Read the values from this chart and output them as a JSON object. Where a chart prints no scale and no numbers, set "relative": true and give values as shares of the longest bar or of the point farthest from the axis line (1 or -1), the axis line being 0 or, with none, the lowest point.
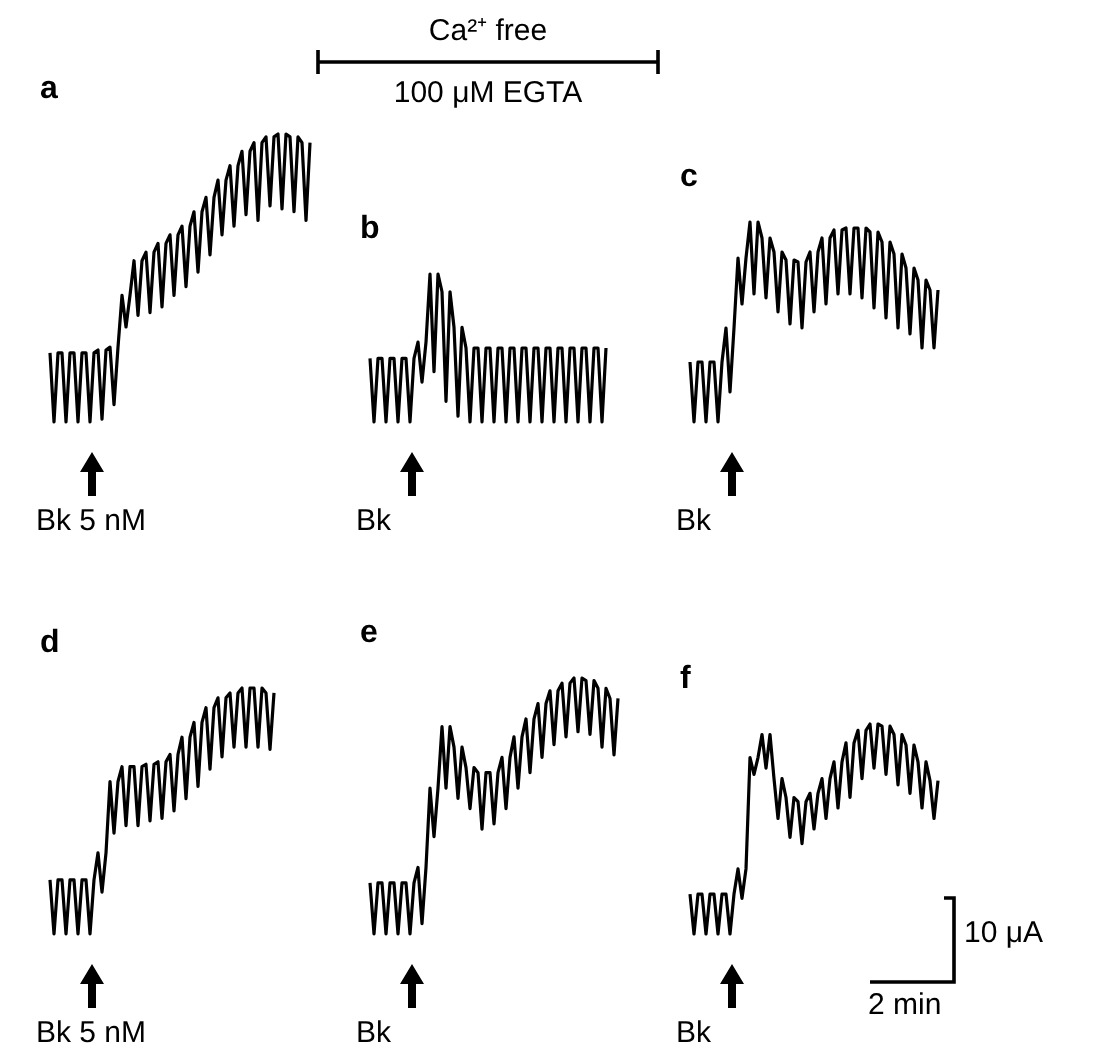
{
  "chart_data": [
    {
      "type": "line",
      "title": "a",
      "relative": true,
      "annotations": [
        "Bk 5 nM"
      ],
      "categories": [
        null,
        null,
        null,
        null,
        null,
        null,
        null,
        null,
        null,
        null,
        null,
        null,
        null,
        null,
        null,
        null,
        null,
        null,
        null,
        null,
        null,
        null,
        null,
        null,
        null,
        null,
        null,
        null,
        null,
        null,
        null,
        null,
        null,
        null,
        null,
        null,
        null,
        null,
        null,
        null,
        null,
        null,
        null,
        null,
        null,
        null,
        null,
        null,
        null,
        null,
        null,
        null,
        null,
        null,
        null,
        null,
        null,
        null,
        null,
        null,
        null,
        null,
        null,
        null,
        null,
        null
      ],
      "series": [
        {
          "color": "#000000",
          "values": [
            0.24,
            0,
            0.24,
            0.24,
            0,
            0.24,
            0.24,
            0,
            0.24,
            0.24,
            0,
            0.24,
            0.25,
            0.01,
            0.25,
            0.26,
            0.06,
            0.26,
            0.44,
            0.33,
            0.44,
            0.56,
            0.37,
            0.56,
            0.59,
            0.38,
            0.59,
            0.62,
            0.4,
            0.62,
            0.65,
            0.44,
            0.65,
            0.68,
            0.47,
            0.68,
            0.73,
            0.52,
            0.73,
            0.78,
            0.58,
            0.78,
            0.84,
            0.65,
            0.84,
            0.89,
            0.68,
            0.89,
            0.94,
            0.72,
            0.94,
            0.97,
            0.7,
            0.97,
            0.99,
            0.75,
            0.99,
            1,
            0.74,
            1,
            0.99,
            0.73,
            0.99,
            0.97,
            0.7,
            0.97
          ]
        }
      ]
    },
    {
      "type": "line",
      "title": "b",
      "relative": true,
      "annotations": [
        "Bk",
        "Ca²⁺ free",
        "100 μM EGTA"
      ],
      "categories": [
        null,
        null,
        null,
        null,
        null,
        null,
        null,
        null,
        null,
        null,
        null,
        null,
        null,
        null,
        null,
        null,
        null,
        null,
        null,
        null,
        null,
        null,
        null,
        null,
        null,
        null,
        null,
        null,
        null,
        null,
        null,
        null,
        null,
        null,
        null,
        null,
        null,
        null,
        null,
        null,
        null,
        null,
        null,
        null,
        null,
        null,
        null,
        null,
        null,
        null,
        null,
        null,
        null,
        null,
        null,
        null,
        null,
        null,
        null,
        null
      ],
      "series": [
        {
          "color": "#000000",
          "values": [
            0.43,
            0,
            0.43,
            0.43,
            0,
            0.43,
            0.43,
            0,
            0.43,
            0.43,
            0,
            0.43,
            0.54,
            0.27,
            0.54,
            1,
            0.34,
            1,
            0.88,
            0.14,
            0.88,
            0.64,
            0.04,
            0.64,
            0.5,
            0,
            0.5,
            0.5,
            0,
            0.5,
            0.5,
            0,
            0.5,
            0.5,
            0,
            0.5,
            0.5,
            0,
            0.5,
            0.5,
            0,
            0.5,
            0.5,
            0,
            0.5,
            0.5,
            0,
            0.5,
            0.5,
            0,
            0.5,
            0.5,
            0,
            0.5,
            0.5,
            0,
            0.5,
            0.5,
            0,
            0.5
          ]
        }
      ]
    },
    {
      "type": "line",
      "title": "c",
      "relative": true,
      "annotations": [
        "Bk"
      ],
      "categories": [
        null,
        null,
        null,
        null,
        null,
        null,
        null,
        null,
        null,
        null,
        null,
        null,
        null,
        null,
        null,
        null,
        null,
        null,
        null,
        null,
        null,
        null,
        null,
        null,
        null,
        null,
        null,
        null,
        null,
        null,
        null,
        null,
        null,
        null,
        null,
        null,
        null,
        null,
        null,
        null,
        null,
        null,
        null,
        null,
        null,
        null,
        null,
        null,
        null,
        null,
        null,
        null,
        null,
        null,
        null,
        null,
        null,
        null,
        null,
        null,
        null,
        null,
        null
      ],
      "series": [
        {
          "color": "#000000",
          "values": [
            0.3,
            0,
            0.3,
            0.3,
            0,
            0.3,
            0.3,
            0,
            0.3,
            0.47,
            0.15,
            0.47,
            0.82,
            0.59,
            0.82,
            1,
            0.64,
            1,
            0.92,
            0.62,
            0.92,
            0.85,
            0.55,
            0.85,
            0.81,
            0.49,
            0.81,
            0.8,
            0.47,
            0.8,
            0.85,
            0.55,
            0.85,
            0.92,
            0.59,
            0.92,
            0.96,
            0.64,
            0.96,
            0.97,
            0.64,
            0.97,
            0.97,
            0.62,
            0.97,
            0.95,
            0.57,
            0.95,
            0.9,
            0.52,
            0.9,
            0.84,
            0.47,
            0.84,
            0.77,
            0.44,
            0.77,
            0.71,
            0.37,
            0.71,
            0.66,
            0.37,
            0.66
          ]
        }
      ]
    },
    {
      "type": "line",
      "title": "d",
      "relative": true,
      "annotations": [
        "Bk 5 nM"
      ],
      "categories": [
        null,
        null,
        null,
        null,
        null,
        null,
        null,
        null,
        null,
        null,
        null,
        null,
        null,
        null,
        null,
        null,
        null,
        null,
        null,
        null,
        null,
        null,
        null,
        null,
        null,
        null,
        null,
        null,
        null,
        null,
        null,
        null,
        null,
        null,
        null,
        null,
        null,
        null,
        null,
        null,
        null,
        null,
        null,
        null,
        null,
        null,
        null,
        null,
        null,
        null,
        null,
        null,
        null,
        null,
        null,
        null,
        null
      ],
      "series": [
        {
          "color": "#000000",
          "values": [
            0.22,
            0,
            0.22,
            0.22,
            0,
            0.22,
            0.22,
            0,
            0.22,
            0.22,
            0,
            0.22,
            0.33,
            0.17,
            0.33,
            0.62,
            0.41,
            0.62,
            0.68,
            0.44,
            0.68,
            0.68,
            0.44,
            0.68,
            0.69,
            0.46,
            0.69,
            0.7,
            0.47,
            0.7,
            0.73,
            0.5,
            0.73,
            0.8,
            0.55,
            0.8,
            0.86,
            0.6,
            0.86,
            0.92,
            0.67,
            0.92,
            0.96,
            0.72,
            0.96,
            0.98,
            0.76,
            0.98,
            1,
            0.76,
            1,
            1,
            0.76,
            1,
            0.98,
            0.75,
            0.98
          ]
        }
      ]
    },
    {
      "type": "line",
      "title": "e",
      "relative": true,
      "annotations": [
        "Bk"
      ],
      "categories": [
        null,
        null,
        null,
        null,
        null,
        null,
        null,
        null,
        null,
        null,
        null,
        null,
        null,
        null,
        null,
        null,
        null,
        null,
        null,
        null,
        null,
        null,
        null,
        null,
        null,
        null,
        null,
        null,
        null,
        null,
        null,
        null,
        null,
        null,
        null,
        null,
        null,
        null,
        null,
        null,
        null,
        null,
        null,
        null,
        null,
        null,
        null,
        null,
        null,
        null,
        null,
        null,
        null,
        null,
        null,
        null,
        null,
        null,
        null,
        null,
        null,
        null,
        null
      ],
      "series": [
        {
          "color": "#000000",
          "values": [
            0.2,
            0,
            0.2,
            0.2,
            0,
            0.2,
            0.2,
            0,
            0.2,
            0.2,
            0,
            0.2,
            0.26,
            0.04,
            0.26,
            0.57,
            0.38,
            0.57,
            0.81,
            0.57,
            0.81,
            0.73,
            0.53,
            0.73,
            0.65,
            0.49,
            0.65,
            0.63,
            0.41,
            0.63,
            0.63,
            0.43,
            0.63,
            0.69,
            0.49,
            0.69,
            0.77,
            0.57,
            0.77,
            0.84,
            0.63,
            0.84,
            0.9,
            0.69,
            0.9,
            0.95,
            0.74,
            0.95,
            0.98,
            0.77,
            0.98,
            1,
            0.79,
            1,
            0.99,
            0.78,
            0.99,
            0.96,
            0.73,
            0.96,
            0.92,
            0.7,
            0.92
          ]
        }
      ]
    },
    {
      "type": "line",
      "title": "f",
      "relative": true,
      "annotations": [
        "Bk",
        "10 μA",
        "2 min"
      ],
      "categories": [
        null,
        null,
        null,
        null,
        null,
        null,
        null,
        null,
        null,
        null,
        null,
        null,
        null,
        null,
        null,
        null,
        null,
        null,
        null,
        null,
        null,
        null,
        null,
        null,
        null,
        null,
        null,
        null,
        null,
        null,
        null,
        null,
        null,
        null,
        null,
        null,
        null,
        null,
        null,
        null,
        null,
        null,
        null,
        null,
        null,
        null,
        null,
        null,
        null,
        null,
        null,
        null,
        null,
        null,
        null,
        null,
        null,
        null,
        null,
        null,
        null,
        null,
        null
      ],
      "series": [
        {
          "color": "#000000",
          "values": [
            0.19,
            0,
            0.19,
            0.19,
            0,
            0.19,
            0.19,
            0,
            0.19,
            0.19,
            0,
            0.19,
            0.31,
            0.17,
            0.31,
            0.84,
            0.76,
            0.84,
            0.95,
            0.79,
            0.95,
            0.74,
            0.55,
            0.74,
            0.65,
            0.46,
            0.65,
            0.63,
            0.43,
            0.63,
            0.67,
            0.5,
            0.67,
            0.74,
            0.55,
            0.74,
            0.82,
            0.6,
            0.82,
            0.91,
            0.65,
            0.91,
            0.97,
            0.74,
            0.97,
            1,
            0.79,
            1,
            0.99,
            0.76,
            0.99,
            0.95,
            0.71,
            0.95,
            0.9,
            0.67,
            0.9,
            0.82,
            0.6,
            0.82,
            0.73,
            0.55,
            0.73
          ]
        }
      ]
    }
  ]
}
